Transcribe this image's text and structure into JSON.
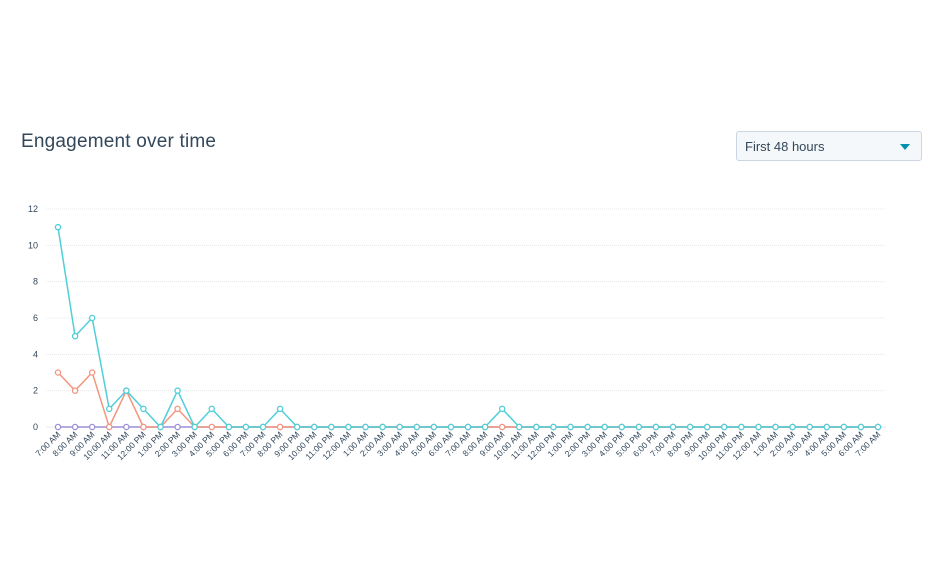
{
  "header": {
    "title": "Engagement over time"
  },
  "range_select": {
    "value": "First 48 hours",
    "icon": "chevron-down-icon"
  },
  "colors": {
    "teal": "#4fcfd8",
    "salmon": "#f2967f",
    "purple": "#9b8fd8",
    "grid": "#e5e8eb",
    "text": "#33475b"
  },
  "chart_data": {
    "type": "line",
    "title": "",
    "xlabel": "",
    "ylabel": "",
    "ylim": [
      0,
      12
    ],
    "yticks": [
      0,
      2,
      4,
      6,
      8,
      10,
      12
    ],
    "grid": true,
    "legend": "none",
    "categories": [
      "7:00 AM",
      "8:00 AM",
      "9:00 AM",
      "10:00 AM",
      "11:00 AM",
      "12:00 PM",
      "1:00 PM",
      "2:00 PM",
      "3:00 PM",
      "4:00 PM",
      "5:00 PM",
      "6:00 PM",
      "7:00 PM",
      "8:00 PM",
      "9:00 PM",
      "10:00 PM",
      "11:00 PM",
      "12:00 AM",
      "1:00 AM",
      "2:00 AM",
      "3:00 AM",
      "4:00 AM",
      "5:00 AM",
      "6:00 AM",
      "7:00 AM",
      "8:00 AM",
      "9:00 AM",
      "10:00 AM",
      "11:00 AM",
      "12:00 PM",
      "1:00 PM",
      "2:00 PM",
      "3:00 PM",
      "4:00 PM",
      "5:00 PM",
      "6:00 PM",
      "7:00 PM",
      "8:00 PM",
      "9:00 PM",
      "10:00 PM",
      "11:00 PM",
      "12:00 AM",
      "1:00 AM",
      "2:00 AM",
      "3:00 AM",
      "4:00 AM",
      "5:00 AM",
      "6:00 AM",
      "7:00 AM"
    ],
    "series": [
      {
        "color": "#9b8fd8",
        "values": [
          0,
          0,
          0,
          0,
          0,
          0,
          0,
          0,
          0,
          0,
          0,
          0,
          0,
          0,
          0,
          0,
          0,
          0,
          0,
          0,
          0,
          0,
          0,
          0,
          0,
          0,
          0,
          0,
          0,
          0,
          0,
          0,
          0,
          0,
          0,
          0,
          0,
          0,
          0,
          0,
          0,
          0,
          0,
          0,
          0,
          0,
          0,
          0,
          0
        ]
      },
      {
        "color": "#f2967f",
        "values": [
          3,
          2,
          3,
          0,
          2,
          0,
          0,
          1,
          0,
          0,
          0,
          0,
          0,
          0,
          0,
          0,
          0,
          0,
          0,
          0,
          0,
          0,
          0,
          0,
          0,
          0,
          0,
          0,
          0,
          0,
          0,
          0,
          0,
          0,
          0,
          0,
          0,
          0,
          0,
          0,
          0,
          0,
          0,
          0,
          0,
          0,
          0,
          0,
          0
        ]
      },
      {
        "color": "#4fcfd8",
        "values": [
          11,
          5,
          6,
          1,
          2,
          1,
          0,
          2,
          0,
          1,
          0,
          0,
          0,
          1,
          0,
          0,
          0,
          0,
          0,
          0,
          0,
          0,
          0,
          0,
          0,
          0,
          1,
          0,
          0,
          0,
          0,
          0,
          0,
          0,
          0,
          0,
          0,
          0,
          0,
          0,
          0,
          0,
          0,
          0,
          0,
          0,
          0,
          0,
          0
        ]
      }
    ]
  }
}
